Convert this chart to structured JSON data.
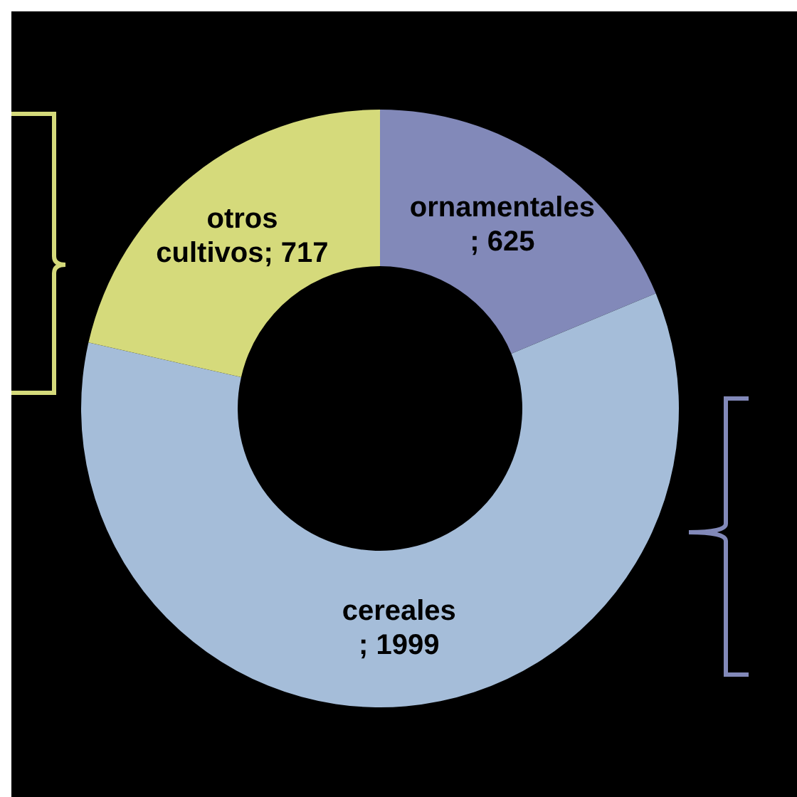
{
  "chart_data": {
    "type": "donut",
    "categories": [
      "ornamentales",
      "cereales",
      "otros cultivos"
    ],
    "values": [
      625,
      1999,
      717
    ],
    "value_labels": [
      "; 625",
      "; 1999",
      "; 717"
    ],
    "colors": [
      "#8289b9",
      "#a5bdd9",
      "#d5da7b"
    ],
    "legend": false
  }
}
